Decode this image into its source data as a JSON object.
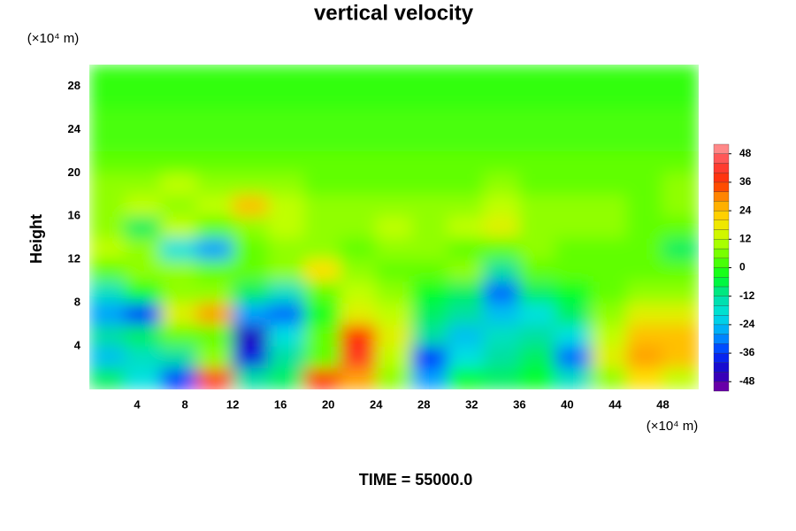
{
  "chart_data": {
    "type": "heatmap",
    "title": "vertical velocity",
    "ylabel": "Height",
    "yunit": "(×10⁴ m)",
    "xunit": "(×10⁴ m)",
    "footer": "TIME = 55000.0",
    "xlim": [
      0,
      51
    ],
    "ylim": [
      0,
      30
    ],
    "xticks": [
      4,
      8,
      12,
      16,
      20,
      24,
      28,
      32,
      36,
      40,
      44,
      48
    ],
    "yticks": [
      4,
      8,
      12,
      16,
      20,
      24,
      28
    ],
    "xbins": [
      0,
      3,
      6,
      9,
      12,
      15,
      18,
      21,
      24,
      27,
      30,
      33,
      36,
      39,
      42,
      45,
      48,
      51
    ],
    "ybins": [
      0,
      2,
      4,
      6,
      8,
      10,
      12,
      14,
      16,
      18,
      20,
      22,
      24,
      26,
      28,
      30
    ],
    "z": [
      [
        -8,
        -20,
        -36,
        40,
        -12,
        -8,
        36,
        28,
        8,
        -28,
        -4,
        -8,
        -4,
        -16,
        8,
        20,
        12
      ],
      [
        -24,
        -16,
        -12,
        8,
        -40,
        -12,
        4,
        40,
        12,
        -36,
        -20,
        -12,
        -8,
        -32,
        16,
        28,
        24
      ],
      [
        -12,
        -8,
        4,
        4,
        -44,
        -20,
        4,
        36,
        16,
        -12,
        -24,
        -16,
        -12,
        -20,
        12,
        24,
        24
      ],
      [
        -28,
        -36,
        16,
        28,
        -28,
        -32,
        -4,
        16,
        12,
        -8,
        -12,
        -24,
        -20,
        -8,
        8,
        16,
        16
      ],
      [
        -16,
        -4,
        8,
        8,
        -8,
        -16,
        4,
        12,
        8,
        -4,
        -8,
        -32,
        -8,
        -4,
        4,
        8,
        8
      ],
      [
        4,
        8,
        8,
        4,
        4,
        8,
        20,
        8,
        4,
        4,
        8,
        -12,
        4,
        4,
        4,
        4,
        4
      ],
      [
        12,
        8,
        -20,
        -28,
        4,
        8,
        8,
        4,
        8,
        8,
        4,
        4,
        8,
        4,
        4,
        4,
        -8
      ],
      [
        8,
        -8,
        12,
        4,
        8,
        12,
        8,
        8,
        12,
        8,
        12,
        16,
        8,
        8,
        8,
        4,
        4
      ],
      [
        8,
        12,
        8,
        12,
        24,
        12,
        8,
        8,
        8,
        8,
        8,
        12,
        8,
        8,
        8,
        4,
        8
      ],
      [
        8,
        8,
        12,
        8,
        8,
        8,
        4,
        4,
        4,
        4,
        4,
        8,
        4,
        4,
        4,
        4,
        8
      ],
      [
        4,
        4,
        4,
        4,
        4,
        4,
        4,
        4,
        4,
        4,
        4,
        4,
        4,
        4,
        4,
        4,
        4
      ],
      [
        2,
        2,
        2,
        2,
        2,
        2,
        2,
        2,
        2,
        2,
        2,
        2,
        2,
        2,
        2,
        2,
        2
      ],
      [
        2,
        2,
        2,
        2,
        2,
        2,
        2,
        2,
        2,
        2,
        2,
        2,
        2,
        2,
        2,
        2,
        2
      ],
      [
        0,
        0,
        0,
        0,
        0,
        0,
        0,
        0,
        0,
        0,
        0,
        0,
        0,
        0,
        0,
        0,
        0
      ],
      [
        0,
        0,
        0,
        0,
        0,
        0,
        0,
        0,
        0,
        0,
        0,
        0,
        0,
        0,
        0,
        0,
        0
      ]
    ],
    "zlim": [
      -52,
      52
    ],
    "zticks": [
      -48,
      -36,
      -24,
      -12,
      0,
      12,
      24,
      36,
      48
    ],
    "colorscale": [
      "#8000a0",
      "#2000c0",
      "#0030ff",
      "#00a0ff",
      "#00e0e0",
      "#00e0a0",
      "#00ff20",
      "#60ff00",
      "#c0ff00",
      "#ffe000",
      "#ffa000",
      "#ff3000",
      "#ff4040",
      "#ffa0a0"
    ]
  }
}
